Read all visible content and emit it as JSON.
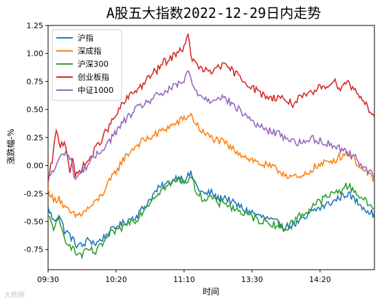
{
  "chart_data": {
    "type": "line",
    "title": "A股五大指数2022-12-29日内走势",
    "xlabel": "时间",
    "ylabel": "涨跌幅-%",
    "xticks": [
      "09:30",
      "10:20",
      "11:10",
      "13:30",
      "14:20"
    ],
    "yticks": [
      "1.25",
      "1.00",
      "0.75",
      "0.50",
      "0.25",
      "0.00",
      "-0.25",
      "-0.50",
      "-0.75"
    ],
    "ylim": [
      -0.93,
      1.25
    ],
    "x_points": 241,
    "legend_position": "top-left",
    "grid": false,
    "series": [
      {
        "name": "沪指",
        "color": "#1f77b4",
        "anchors": [
          [
            0,
            -0.37
          ],
          [
            4,
            -0.5
          ],
          [
            8,
            -0.43
          ],
          [
            12,
            -0.58
          ],
          [
            16,
            -0.62
          ],
          [
            20,
            -0.7
          ],
          [
            25,
            -0.72
          ],
          [
            30,
            -0.66
          ],
          [
            35,
            -0.7
          ],
          [
            40,
            -0.65
          ],
          [
            45,
            -0.6
          ],
          [
            50,
            -0.55
          ],
          [
            55,
            -0.52
          ],
          [
            60,
            -0.48
          ],
          [
            65,
            -0.45
          ],
          [
            70,
            -0.38
          ],
          [
            75,
            -0.3
          ],
          [
            80,
            -0.22
          ],
          [
            85,
            -0.18
          ],
          [
            90,
            -0.15
          ],
          [
            95,
            -0.1
          ],
          [
            100,
            -0.12
          ],
          [
            105,
            -0.08
          ],
          [
            110,
            -0.2
          ],
          [
            115,
            -0.26
          ],
          [
            120,
            -0.24
          ],
          [
            125,
            -0.3
          ],
          [
            130,
            -0.28
          ],
          [
            135,
            -0.33
          ],
          [
            140,
            -0.36
          ],
          [
            145,
            -0.4
          ],
          [
            150,
            -0.42
          ],
          [
            155,
            -0.45
          ],
          [
            160,
            -0.47
          ],
          [
            165,
            -0.5
          ],
          [
            170,
            -0.52
          ],
          [
            175,
            -0.55
          ],
          [
            180,
            -0.53
          ],
          [
            185,
            -0.5
          ],
          [
            190,
            -0.47
          ],
          [
            195,
            -0.4
          ],
          [
            200,
            -0.38
          ],
          [
            205,
            -0.35
          ],
          [
            210,
            -0.32
          ],
          [
            215,
            -0.28
          ],
          [
            220,
            -0.25
          ],
          [
            225,
            -0.3
          ],
          [
            230,
            -0.35
          ],
          [
            235,
            -0.4
          ],
          [
            240,
            -0.44
          ]
        ],
        "start": "-0.37",
        "end": "-0.44"
      },
      {
        "name": "深成指",
        "color": "#ff7f0e",
        "anchors": [
          [
            0,
            -0.2
          ],
          [
            4,
            -0.32
          ],
          [
            8,
            -0.28
          ],
          [
            12,
            -0.38
          ],
          [
            16,
            -0.42
          ],
          [
            20,
            -0.45
          ],
          [
            25,
            -0.43
          ],
          [
            30,
            -0.38
          ],
          [
            35,
            -0.33
          ],
          [
            40,
            -0.25
          ],
          [
            45,
            -0.15
          ],
          [
            50,
            -0.05
          ],
          [
            55,
            0.05
          ],
          [
            60,
            0.12
          ],
          [
            65,
            0.18
          ],
          [
            70,
            0.22
          ],
          [
            75,
            0.25
          ],
          [
            80,
            0.28
          ],
          [
            85,
            0.32
          ],
          [
            90,
            0.35
          ],
          [
            95,
            0.38
          ],
          [
            100,
            0.42
          ],
          [
            105,
            0.45
          ],
          [
            110,
            0.35
          ],
          [
            115,
            0.28
          ],
          [
            120,
            0.25
          ],
          [
            125,
            0.22
          ],
          [
            130,
            0.2
          ],
          [
            135,
            0.15
          ],
          [
            140,
            0.12
          ],
          [
            145,
            0.08
          ],
          [
            150,
            0.05
          ],
          [
            155,
            0.02
          ],
          [
            160,
            0.0
          ],
          [
            165,
            -0.02
          ],
          [
            170,
            -0.05
          ],
          [
            175,
            -0.08
          ],
          [
            180,
            -0.1
          ],
          [
            185,
            -0.12
          ],
          [
            190,
            -0.08
          ],
          [
            195,
            -0.02
          ],
          [
            200,
            0.0
          ],
          [
            205,
            0.03
          ],
          [
            210,
            0.05
          ],
          [
            215,
            0.08
          ],
          [
            220,
            0.12
          ],
          [
            225,
            0.06
          ],
          [
            230,
            -0.02
          ],
          [
            235,
            -0.08
          ],
          [
            240,
            -0.12
          ]
        ],
        "start": "-0.20",
        "end": "-0.12"
      },
      {
        "name": "沪深300",
        "color": "#2ca02c",
        "anchors": [
          [
            0,
            -0.45
          ],
          [
            4,
            -0.55
          ],
          [
            8,
            -0.5
          ],
          [
            12,
            -0.65
          ],
          [
            16,
            -0.7
          ],
          [
            20,
            -0.78
          ],
          [
            25,
            -0.8
          ],
          [
            30,
            -0.75
          ],
          [
            35,
            -0.78
          ],
          [
            40,
            -0.7
          ],
          [
            45,
            -0.62
          ],
          [
            50,
            -0.58
          ],
          [
            55,
            -0.55
          ],
          [
            60,
            -0.5
          ],
          [
            65,
            -0.48
          ],
          [
            70,
            -0.4
          ],
          [
            75,
            -0.32
          ],
          [
            80,
            -0.25
          ],
          [
            85,
            -0.2
          ],
          [
            90,
            -0.17
          ],
          [
            95,
            -0.12
          ],
          [
            100,
            -0.15
          ],
          [
            105,
            -0.1
          ],
          [
            110,
            -0.25
          ],
          [
            115,
            -0.3
          ],
          [
            120,
            -0.28
          ],
          [
            125,
            -0.35
          ],
          [
            130,
            -0.32
          ],
          [
            135,
            -0.38
          ],
          [
            140,
            -0.4
          ],
          [
            145,
            -0.44
          ],
          [
            150,
            -0.46
          ],
          [
            155,
            -0.49
          ],
          [
            160,
            -0.5
          ],
          [
            165,
            -0.52
          ],
          [
            170,
            -0.54
          ],
          [
            175,
            -0.57
          ],
          [
            180,
            -0.5
          ],
          [
            185,
            -0.45
          ],
          [
            190,
            -0.42
          ],
          [
            195,
            -0.35
          ],
          [
            200,
            -0.32
          ],
          [
            205,
            -0.28
          ],
          [
            210,
            -0.25
          ],
          [
            215,
            -0.22
          ],
          [
            220,
            -0.18
          ],
          [
            225,
            -0.22
          ],
          [
            230,
            -0.28
          ],
          [
            235,
            -0.34
          ],
          [
            240,
            -0.38
          ]
        ],
        "start": "-0.45",
        "end": "-0.38"
      },
      {
        "name": "创业板指",
        "color": "#d62728",
        "anchors": [
          [
            0,
            -0.15
          ],
          [
            3,
            0.05
          ],
          [
            6,
            0.3
          ],
          [
            9,
            0.18
          ],
          [
            12,
            0.22
          ],
          [
            14,
            0.12
          ],
          [
            16,
            -0.05
          ],
          [
            18,
            0.05
          ],
          [
            20,
            -0.1
          ],
          [
            25,
            -0.02
          ],
          [
            30,
            0.05
          ],
          [
            35,
            0.15
          ],
          [
            40,
            0.25
          ],
          [
            45,
            0.35
          ],
          [
            50,
            0.45
          ],
          [
            55,
            0.55
          ],
          [
            60,
            0.62
          ],
          [
            65,
            0.68
          ],
          [
            70,
            0.72
          ],
          [
            75,
            0.8
          ],
          [
            80,
            0.85
          ],
          [
            85,
            0.92
          ],
          [
            90,
            0.95
          ],
          [
            95,
            1.02
          ],
          [
            100,
            1.05
          ],
          [
            103,
            1.15
          ],
          [
            106,
            0.95
          ],
          [
            110,
            0.88
          ],
          [
            115,
            0.85
          ],
          [
            120,
            0.82
          ],
          [
            125,
            0.9
          ],
          [
            130,
            0.88
          ],
          [
            135,
            0.85
          ],
          [
            140,
            0.8
          ],
          [
            145,
            0.75
          ],
          [
            150,
            0.7
          ],
          [
            155,
            0.65
          ],
          [
            160,
            0.62
          ],
          [
            165,
            0.6
          ],
          [
            170,
            0.62
          ],
          [
            175,
            0.58
          ],
          [
            180,
            0.55
          ],
          [
            185,
            0.6
          ],
          [
            190,
            0.62
          ],
          [
            195,
            0.65
          ],
          [
            200,
            0.7
          ],
          [
            205,
            0.72
          ],
          [
            210,
            0.75
          ],
          [
            215,
            0.7
          ],
          [
            220,
            0.75
          ],
          [
            225,
            0.68
          ],
          [
            230,
            0.62
          ],
          [
            235,
            0.52
          ],
          [
            240,
            0.45
          ]
        ],
        "start": "-0.15",
        "end": "0.45"
      },
      {
        "name": "中证1000",
        "color": "#9467bd",
        "anchors": [
          [
            0,
            -0.1
          ],
          [
            4,
            -0.05
          ],
          [
            8,
            0.05
          ],
          [
            12,
            0.12
          ],
          [
            16,
            0.08
          ],
          [
            20,
            -0.12
          ],
          [
            25,
            -0.05
          ],
          [
            30,
            0.02
          ],
          [
            35,
            0.08
          ],
          [
            40,
            0.15
          ],
          [
            45,
            0.22
          ],
          [
            50,
            0.3
          ],
          [
            55,
            0.38
          ],
          [
            60,
            0.45
          ],
          [
            65,
            0.5
          ],
          [
            70,
            0.55
          ],
          [
            75,
            0.58
          ],
          [
            80,
            0.62
          ],
          [
            85,
            0.65
          ],
          [
            90,
            0.68
          ],
          [
            95,
            0.72
          ],
          [
            100,
            0.75
          ],
          [
            103,
            0.85
          ],
          [
            106,
            0.72
          ],
          [
            110,
            0.65
          ],
          [
            115,
            0.6
          ],
          [
            120,
            0.58
          ],
          [
            125,
            0.62
          ],
          [
            130,
            0.6
          ],
          [
            135,
            0.55
          ],
          [
            140,
            0.5
          ],
          [
            145,
            0.45
          ],
          [
            150,
            0.4
          ],
          [
            155,
            0.35
          ],
          [
            160,
            0.32
          ],
          [
            165,
            0.3
          ],
          [
            170,
            0.28
          ],
          [
            175,
            0.25
          ],
          [
            180,
            0.22
          ],
          [
            185,
            0.2
          ],
          [
            190,
            0.22
          ],
          [
            195,
            0.24
          ],
          [
            200,
            0.22
          ],
          [
            205,
            0.2
          ],
          [
            210,
            0.18
          ],
          [
            215,
            0.15
          ],
          [
            220,
            0.12
          ],
          [
            225,
            0.08
          ],
          [
            230,
            0.02
          ],
          [
            235,
            -0.05
          ],
          [
            240,
            -0.1
          ]
        ],
        "start": "-0.10",
        "end": "-0.10"
      }
    ]
  },
  "watermark": "大数据"
}
